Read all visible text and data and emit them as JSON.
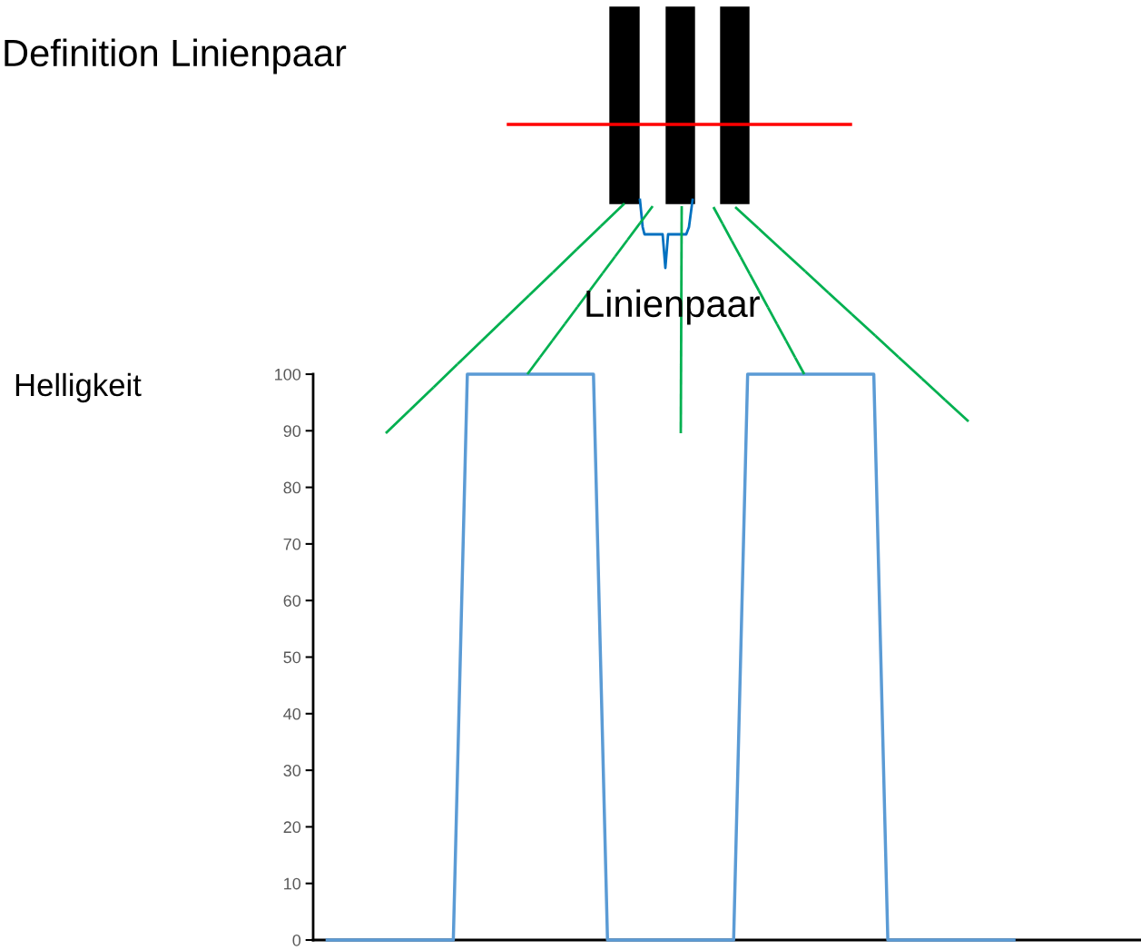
{
  "chart_data": {
    "type": "line",
    "title": "Definition Linienpaar",
    "ylabel": "Helligkeit",
    "annotations": [
      "Linienpaar"
    ],
    "categories": [
      null,
      null,
      null,
      null,
      null,
      null,
      null,
      null,
      null,
      null,
      null,
      null,
      null,
      null,
      null,
      null,
      null,
      null,
      null,
      null,
      null,
      null,
      null,
      null,
      null,
      null,
      null,
      null,
      null,
      null,
      null,
      null,
      null,
      null,
      null,
      null,
      null,
      null,
      null,
      null,
      null,
      null,
      null,
      null,
      null,
      null,
      null,
      null,
      null,
      null,
      null,
      null,
      null,
      null,
      null,
      null,
      null,
      null,
      null,
      null
    ],
    "series": [
      {
        "color": "#5b9bd5",
        "values": [
          null,
          0,
          0,
          0,
          0,
          0,
          0,
          0,
          0,
          0,
          0,
          100,
          100,
          100,
          100,
          100,
          100,
          100,
          100,
          100,
          100,
          0,
          0,
          0,
          0,
          0,
          0,
          0,
          0,
          0,
          0,
          100,
          100,
          100,
          100,
          100,
          100,
          100,
          100,
          100,
          100,
          0,
          0,
          0,
          0,
          0,
          0,
          0,
          0,
          0,
          0,
          null,
          null,
          null,
          null,
          null,
          null,
          null,
          null,
          null
        ]
      }
    ],
    "ylim": [
      0,
      100
    ],
    "yticks": [
      0,
      10,
      20,
      30,
      40,
      50,
      60,
      70,
      80,
      90,
      100
    ],
    "grid": false,
    "legend": false,
    "marker": "none",
    "line_style": "solid"
  }
}
